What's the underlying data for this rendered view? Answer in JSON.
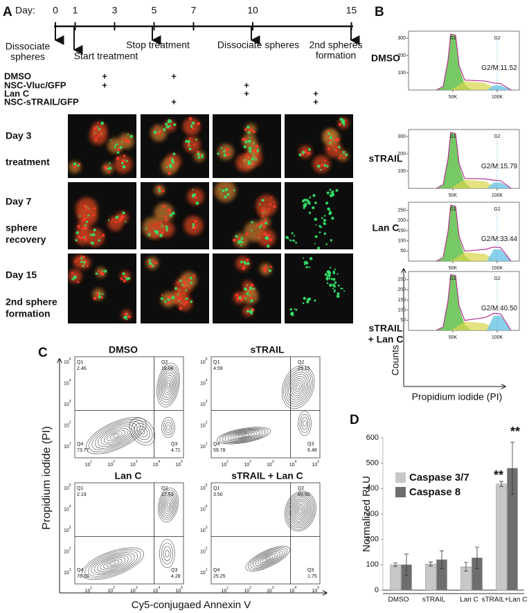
{
  "panel_a": {
    "label": "A",
    "timeline": {
      "title": "Day:",
      "days": [
        0,
        1,
        3,
        5,
        7,
        10,
        15
      ],
      "events": [
        [
          "Dissociate",
          "spheres"
        ],
        [
          "Start treatment"
        ],
        [
          "Stop treatment"
        ],
        [
          "Dissociate spheres"
        ],
        [
          "2nd spheres",
          "formation"
        ]
      ]
    },
    "treatments": {
      "rows": [
        {
          "label": "DMSO",
          "marks": [
            "+",
            "+",
            null,
            null
          ]
        },
        {
          "label": "NSC-Vluc/GFP",
          "marks": [
            "+",
            null,
            "+",
            null
          ]
        },
        {
          "label": "Lan C",
          "marks": [
            null,
            null,
            "+",
            "+"
          ]
        },
        {
          "label": "NSC-sTRAIL/GFP",
          "marks": [
            null,
            "+",
            null,
            "+"
          ]
        }
      ]
    },
    "image_rows": [
      {
        "day": "Day 3",
        "stage": [
          "treatment"
        ]
      },
      {
        "day": "Day 7",
        "stage": [
          "sphere",
          "recovery"
        ]
      },
      {
        "day": "Day 15",
        "stage": [
          "2nd sphere",
          "formation"
        ]
      }
    ]
  },
  "panel_b": {
    "label": "B",
    "gates": [
      "G1",
      "G2"
    ],
    "xlim": [
      0,
      125000
    ],
    "xticks": [
      {
        "value": 50000,
        "label": "50K"
      },
      {
        "value": 100000,
        "label": "100K"
      }
    ],
    "ylabel": "Counts",
    "xlabel": "Propidium iodide (PI)",
    "plots": [
      {
        "name": [
          "DMSO"
        ],
        "ylim": [
          0,
          340
        ],
        "yticks": [
          100,
          200,
          300
        ],
        "g2m": "G2/M:11.52"
      },
      {
        "name": [
          "sTRAIL"
        ],
        "ylim": [
          0,
          340
        ],
        "yticks": [
          100,
          200,
          300
        ],
        "g2m": "G2/M:15.79"
      },
      {
        "name": [
          "Lan C"
        ],
        "ylim": [
          0,
          290
        ],
        "yticks": [
          50,
          100,
          150,
          200,
          250
        ],
        "g2m": "G2/M:33.44"
      },
      {
        "name": [
          "sTRAIL",
          "+ Lan C"
        ],
        "ylim": [
          0,
          290
        ],
        "yticks": [
          50,
          100,
          150,
          200,
          250
        ],
        "g2m": "G2/M:40.50"
      }
    ]
  },
  "panel_c": {
    "label": "C",
    "quadrants": [
      "Q1",
      "Q2",
      "Q3",
      "Q4"
    ],
    "tick_base": "10",
    "tick_exponents": [
      1,
      2,
      3,
      4,
      5
    ],
    "ylabel": "Propidium iodide (PI)",
    "xlabel": "Cy5-conjugaed Annexin V",
    "plots": [
      {
        "title": "DMSO",
        "values": [
          "2.46",
          "19.06",
          "4.71",
          "73.77"
        ]
      },
      {
        "title": "sTRAIL",
        "values": [
          "4.59",
          "29.15",
          "6.48",
          "59.78"
        ]
      },
      {
        "title": "Lan C",
        "values": [
          "2.19",
          "17.53",
          "4.28",
          "76.00"
        ]
      },
      {
        "title": "sTRAIL + Lan C",
        "values": [
          "3.50",
          "69.50",
          "1.75",
          "25.25"
        ]
      }
    ]
  },
  "chart_data": {
    "type": "bar",
    "panel": "D",
    "categories": [
      "DMSO",
      "sTRAIL",
      "Lan C",
      "sTRAIL+Lan C"
    ],
    "series": [
      {
        "name": "Caspase 3/7",
        "color": "#c8c8c8",
        "values": [
          100,
          103,
          92,
          418
        ],
        "errors": [
          7,
          8,
          17,
          10
        ]
      },
      {
        "name": "Caspase 8",
        "color": "#6e6e6e",
        "values": [
          100,
          120,
          127,
          480
        ],
        "errors": [
          42,
          35,
          42,
          103
        ]
      }
    ],
    "ylabel": "Normalized RLU",
    "ylim": [
      0,
      600
    ],
    "yticks": [
      0,
      100,
      200,
      300,
      400,
      500,
      600
    ],
    "annotations": [
      "**",
      "**"
    ]
  }
}
